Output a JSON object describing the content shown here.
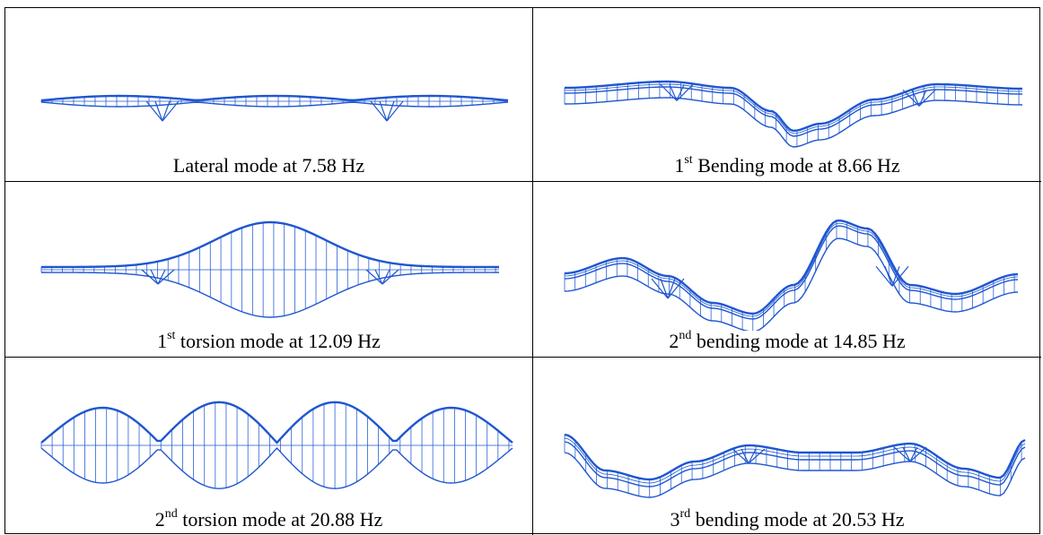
{
  "table": {
    "cells": [
      {
        "caption": {
          "text": "Lateral mode at 7.58 Hz"
        }
      },
      {
        "caption": {
          "number": "1",
          "suffix": "st",
          "text": " Bending mode at 8.66 Hz"
        }
      },
      {
        "caption": {
          "number": "1",
          "suffix": "st",
          "text": " torsion mode at 12.09 Hz"
        }
      },
      {
        "caption": {
          "number": "2",
          "suffix": "nd",
          "text": " bending mode at 14.85 Hz"
        }
      },
      {
        "caption": {
          "number": "2",
          "suffix": "nd",
          "text": " torsion mode at 20.88 Hz"
        }
      },
      {
        "caption": {
          "number": "3",
          "suffix": "rd",
          "text": " bending mode at 20.53 Hz"
        }
      }
    ]
  }
}
